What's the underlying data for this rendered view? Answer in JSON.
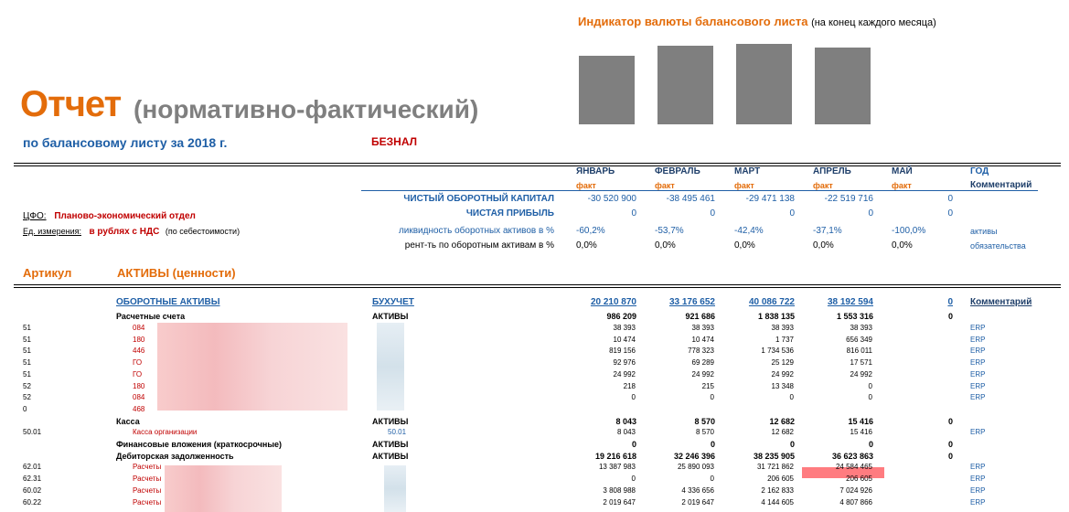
{
  "indicator": {
    "title": "Индикатор валюты балансового листа",
    "subtitle": "(на конец каждого месяца)",
    "bar_color": "#7f7f7f",
    "bars": [
      {
        "level": 0.79
      },
      {
        "level": 0.9
      },
      {
        "level": 0.93
      },
      {
        "level": 0.88
      }
    ]
  },
  "report": {
    "title_main": "Отчет",
    "title_sub": "(нормативно-фактический)",
    "subtitle": "по балансовому листу за 2018 г.",
    "mode": "БЕЗНАЛ"
  },
  "months": [
    {
      "name": "ЯНВАРЬ",
      "kind": "факт"
    },
    {
      "name": "ФЕВРАЛЬ",
      "kind": "факт"
    },
    {
      "name": "МАРТ",
      "kind": "факт"
    },
    {
      "name": "АПРЕЛЬ",
      "kind": "факт"
    },
    {
      "name": "МАЙ",
      "kind": "факт"
    }
  ],
  "year_header": {
    "name": "ГОД",
    "comment": "Комментарий"
  },
  "cfo": {
    "label": "ЦФО:",
    "value": "Планово-экономический отдел"
  },
  "units": {
    "label": "Ед. измерения:",
    "value": "в рублях с НДС",
    "note": "(по себестоимости)"
  },
  "kpis": [
    {
      "label": "ЧИСТЫЙ ОБОРОТНЫЙ КАПИТАЛ",
      "values": [
        "-30 520 900",
        "-38 495 461",
        "-29 471 138",
        "-22 519 716",
        "0"
      ],
      "note": ""
    },
    {
      "label": "ЧИСТАЯ ПРИБЫЛЬ",
      "values": [
        "0",
        "0",
        "0",
        "0",
        "0"
      ],
      "note": ""
    },
    {
      "label": "ликвидность оборотных активов в %",
      "values": [
        "-60,2%",
        "-53,7%",
        "-42,4%",
        "-37,1%",
        "-100,0%"
      ],
      "note": "активы"
    },
    {
      "label": "рент-ть по оборотным активам в %",
      "values": [
        "0,0%",
        "0,0%",
        "0,0%",
        "0,0%",
        "0,0%"
      ],
      "note": "обязательства"
    }
  ],
  "section": {
    "article": "Артикул",
    "title": "АКТИВЫ (ценности)"
  },
  "top_row": {
    "label": "ОБОРОТНЫЕ АКТИВЫ",
    "type": "БУХУЧЕТ",
    "values": [
      "20 210 870",
      "33 176 652",
      "40 086 722",
      "38 192 594",
      "0"
    ],
    "comment": "Комментарий"
  },
  "groups": [
    {
      "label": "Расчетные счета",
      "type": "АКТИВЫ",
      "values": [
        "986 209",
        "921 686",
        "1 838 135",
        "1 553 316",
        "0"
      ],
      "rows": [
        {
          "code": "51",
          "name": "084",
          "sub": "",
          "values": [
            "38 393",
            "38 393",
            "38 393",
            "38 393"
          ],
          "note": "ERP"
        },
        {
          "code": "51",
          "name": "180",
          "sub": "",
          "values": [
            "10 474",
            "10 474",
            "1 737",
            "656 349"
          ],
          "note": "ERP"
        },
        {
          "code": "51",
          "name": "446",
          "sub": "",
          "values": [
            "819 156",
            "778 323",
            "1 734 536",
            "816 011"
          ],
          "note": "ERP"
        },
        {
          "code": "51",
          "name": "ГО",
          "sub": "",
          "values": [
            "92 976",
            "69 289",
            "25 129",
            "17 571"
          ],
          "note": "ERP"
        },
        {
          "code": "51",
          "name": "ГО",
          "sub": "",
          "values": [
            "24 992",
            "24 992",
            "24 992",
            "24 992"
          ],
          "note": "ERP"
        },
        {
          "code": "52",
          "name": "180",
          "sub": "",
          "values": [
            "218",
            "215",
            "13 348",
            "0"
          ],
          "note": "ERP"
        },
        {
          "code": "52",
          "name": "084",
          "sub": "",
          "values": [
            "0",
            "0",
            "0",
            "0"
          ],
          "note": "ERP"
        },
        {
          "code": "0",
          "name": "468",
          "sub": "",
          "values": [
            "",
            "",
            "",
            ""
          ],
          "note": ""
        }
      ]
    },
    {
      "label": "Касса",
      "type": "АКТИВЫ",
      "values": [
        "8 043",
        "8 570",
        "12 682",
        "15 416",
        "0"
      ],
      "rows": [
        {
          "code": "50.01",
          "name": "Касса организации",
          "sub": "50.01",
          "values": [
            "8 043",
            "8 570",
            "12 682",
            "15 416"
          ],
          "note": "ERP"
        }
      ]
    },
    {
      "label": "Финансовые вложения (краткосрочные)",
      "type": "АКТИВЫ",
      "values": [
        "0",
        "0",
        "0",
        "0",
        "0"
      ],
      "rows": []
    },
    {
      "label": "Дебиторская задолженность",
      "type": "АКТИВЫ",
      "values": [
        "19 216 618",
        "32 246 396",
        "38 235 905",
        "36 623 863",
        "0"
      ],
      "rows": [
        {
          "code": "62.01",
          "name": "Расчеты",
          "sub": "",
          "values": [
            "13 387 983",
            "25 890 093",
            "31 721 862",
            "24 584 465"
          ],
          "note": "ERP"
        },
        {
          "code": "62.31",
          "name": "Расчеты",
          "sub": "",
          "values": [
            "0",
            "0",
            "206 605",
            "206 605"
          ],
          "note": "ERP"
        },
        {
          "code": "60.02",
          "name": "Расчеты",
          "sub": "",
          "values": [
            "3 808 988",
            "4 336 656",
            "2 162 833",
            "7 024 926"
          ],
          "note": "ERP"
        },
        {
          "code": "60.22",
          "name": "Расчеты",
          "sub": "",
          "values": [
            "2 019 647",
            "2 019 647",
            "4 144 605",
            "4 807 866"
          ],
          "note": "ERP"
        }
      ]
    }
  ]
}
